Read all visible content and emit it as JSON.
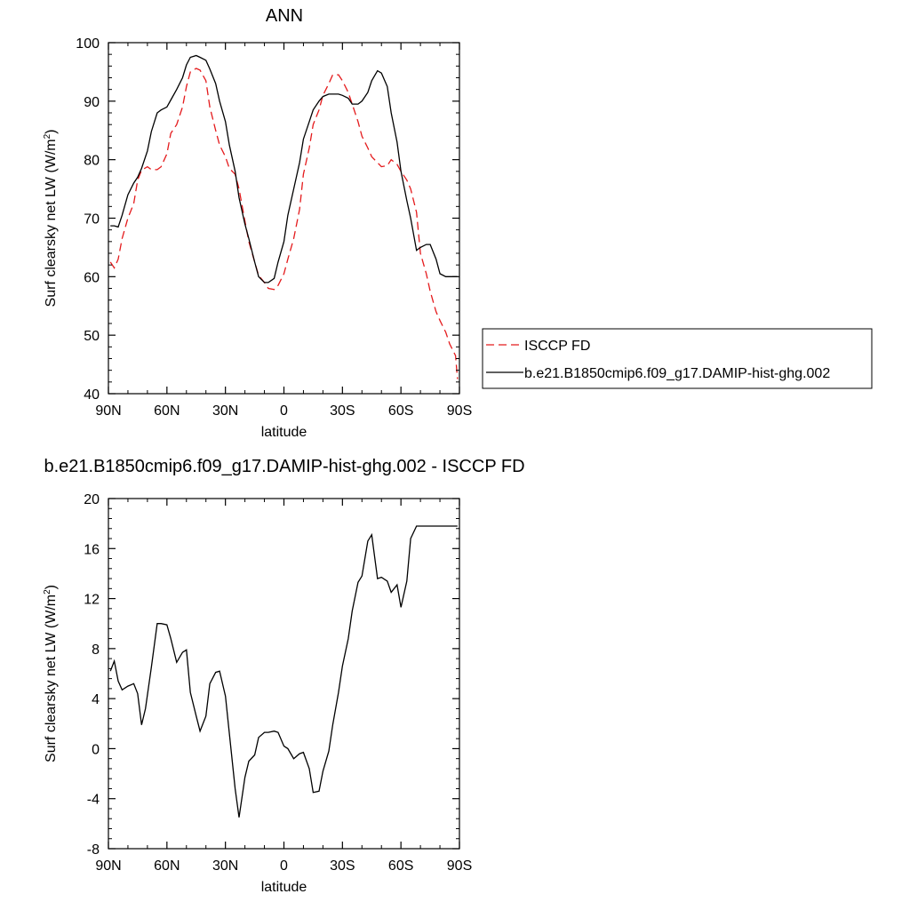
{
  "chart_data": [
    {
      "type": "line",
      "title": "ANN",
      "xlabel": "latitude",
      "ylabel": "Surf clearsky net LW (W/m",
      "ylabel_sup": "2",
      "ylabel_close": ")",
      "xlim": [
        -90,
        90
      ],
      "ylim": [
        40,
        100
      ],
      "xticks": [
        -90,
        -60,
        -30,
        0,
        30,
        60,
        90
      ],
      "xtick_labels": [
        "90N",
        "60N",
        "30N",
        "0",
        "30S",
        "60S",
        "90S"
      ],
      "yticks": [
        40,
        50,
        60,
        70,
        80,
        90,
        100
      ],
      "ytick_labels": [
        "40",
        "50",
        "60",
        "70",
        "80",
        "90",
        "100"
      ],
      "grid": false,
      "legend_position": "outside-right",
      "series": [
        {
          "name": "ISCCP FD",
          "color": "#e41a1c",
          "dash": "dashed",
          "x": [
            -89,
            -87,
            -85,
            -83,
            -80,
            -77,
            -75,
            -73,
            -70,
            -68,
            -65,
            -63,
            -60,
            -58,
            -55,
            -52,
            -50,
            -48,
            -45,
            -43,
            -40,
            -38,
            -35,
            -33,
            -30,
            -28,
            -25,
            -23,
            -20,
            -18,
            -15,
            -13,
            -10,
            -8,
            -5,
            -3,
            0,
            2,
            5,
            8,
            10,
            13,
            15,
            18,
            20,
            23,
            25,
            28,
            30,
            33,
            35,
            38,
            40,
            43,
            45,
            48,
            50,
            53,
            55,
            58,
            60,
            63,
            65,
            68,
            70,
            73,
            75,
            78,
            80,
            83,
            85,
            88,
            89
          ],
          "y": [
            62.5,
            61.5,
            63,
            66.5,
            70,
            72.5,
            76.5,
            78.2,
            78.8,
            78.3,
            78.3,
            78.8,
            81,
            84.5,
            86,
            89,
            92.5,
            95,
            95.6,
            95.3,
            93.5,
            89,
            85,
            82.5,
            80.5,
            78.5,
            77.5,
            75,
            69.5,
            66,
            62.5,
            60.2,
            59,
            58,
            57.8,
            58.5,
            60.5,
            63,
            66.5,
            71.5,
            77.5,
            82,
            86,
            88.5,
            91,
            93,
            94.5,
            94.5,
            93.5,
            91.5,
            89.5,
            86.5,
            84,
            82,
            80.5,
            79.5,
            78.8,
            79,
            80,
            79.2,
            78,
            76.5,
            75,
            71,
            64,
            60.5,
            57.5,
            54,
            52.5,
            50.5,
            48.5,
            46.5,
            42.5
          ]
        },
        {
          "name": "b.e21.B1850cmip6.f09_g17.DAMIP-hist-ghg.002",
          "color": "#000000",
          "dash": "solid",
          "x": [
            -89,
            -87,
            -85,
            -83,
            -80,
            -77,
            -75,
            -73,
            -70,
            -68,
            -65,
            -63,
            -60,
            -58,
            -55,
            -52,
            -50,
            -48,
            -45,
            -43,
            -40,
            -38,
            -35,
            -33,
            -30,
            -28,
            -25,
            -23,
            -20,
            -18,
            -15,
            -13,
            -10,
            -8,
            -5,
            -3,
            0,
            2,
            5,
            8,
            10,
            13,
            15,
            18,
            20,
            23,
            25,
            28,
            30,
            33,
            35,
            38,
            40,
            43,
            45,
            48,
            50,
            53,
            55,
            58,
            60,
            63,
            65,
            68,
            70,
            73,
            75,
            78,
            80,
            83,
            85,
            88,
            89
          ],
          "y": [
            68.7,
            68.7,
            68.5,
            70.5,
            74,
            76,
            77,
            78.5,
            81.5,
            84.8,
            88,
            88.5,
            89,
            90.2,
            92,
            94,
            96.2,
            97.5,
            97.8,
            97.5,
            97,
            95.5,
            93,
            90,
            86.5,
            82.5,
            78,
            73.5,
            69,
            66.5,
            62.5,
            60,
            59,
            59,
            59.7,
            62.5,
            66,
            70.5,
            75,
            79.5,
            83.5,
            86.5,
            88.5,
            90,
            90.8,
            91.2,
            91.2,
            91.2,
            91,
            90.5,
            89.5,
            89.5,
            90,
            91.5,
            93.5,
            95.2,
            94.8,
            92.5,
            88,
            83,
            78,
            73,
            70,
            64.5,
            65,
            65.5,
            65.5,
            63,
            60.5,
            60,
            60,
            60,
            60
          ]
        }
      ]
    },
    {
      "type": "line",
      "title": "b.e21.B1850cmip6.f09_g17.DAMIP-hist-ghg.002 - ISCCP FD",
      "xlabel": "latitude",
      "ylabel": "Surf clearsky net LW (W/m",
      "ylabel_sup": "2",
      "ylabel_close": ")",
      "xlim": [
        -90,
        90
      ],
      "ylim": [
        -8,
        20
      ],
      "xticks": [
        -90,
        -60,
        -30,
        0,
        30,
        60,
        90
      ],
      "xtick_labels": [
        "90N",
        "60N",
        "30N",
        "0",
        "30S",
        "60S",
        "90S"
      ],
      "yticks": [
        -8,
        -4,
        0,
        4,
        8,
        12,
        16,
        20
      ],
      "ytick_labels": [
        "-8",
        "-4",
        "0",
        "4",
        "8",
        "12",
        "16",
        "20"
      ],
      "grid": false,
      "series": [
        {
          "color": "#000000",
          "dash": "solid",
          "x": [
            -89,
            -87,
            -85,
            -83,
            -80,
            -77,
            -75,
            -73,
            -71,
            -68,
            -65,
            -63,
            -60,
            -58,
            -55,
            -52,
            -50,
            -48,
            -45,
            -43,
            -40,
            -38,
            -35,
            -33,
            -30,
            -28,
            -25,
            -23,
            -20,
            -18,
            -15,
            -13,
            -10,
            -8,
            -5,
            -3,
            0,
            2,
            5,
            8,
            10,
            13,
            15,
            18,
            20,
            23,
            25,
            28,
            30,
            33,
            35,
            38,
            40,
            43,
            45,
            48,
            50,
            53,
            55,
            58,
            60,
            63,
            65,
            68,
            70,
            73,
            75,
            78,
            80,
            83,
            85,
            88,
            89
          ],
          "y": [
            6.2,
            7.0,
            5.4,
            4.7,
            5.0,
            5.2,
            4.4,
            1.9,
            3.2,
            6.5,
            10.0,
            10.0,
            9.9,
            8.8,
            6.9,
            7.7,
            7.9,
            4.5,
            2.6,
            1.4,
            2.6,
            5.2,
            6.1,
            6.2,
            4.2,
            1.2,
            -3.2,
            -5.5,
            -2.3,
            -1.0,
            -0.5,
            0.9,
            1.3,
            1.3,
            1.4,
            1.3,
            0.2,
            0.0,
            -0.8,
            -0.4,
            -0.3,
            -1.6,
            -3.5,
            -3.4,
            -1.8,
            -0.2,
            1.9,
            4.5,
            6.6,
            8.8,
            11.0,
            13.3,
            13.8,
            16.6,
            17.1,
            13.6,
            13.7,
            13.4,
            12.5,
            13.1,
            11.3,
            13.4,
            16.8,
            17.8,
            17.8,
            17.8,
            17.8,
            17.8,
            17.8,
            17.8,
            17.8,
            17.8,
            17.8
          ]
        }
      ]
    }
  ]
}
